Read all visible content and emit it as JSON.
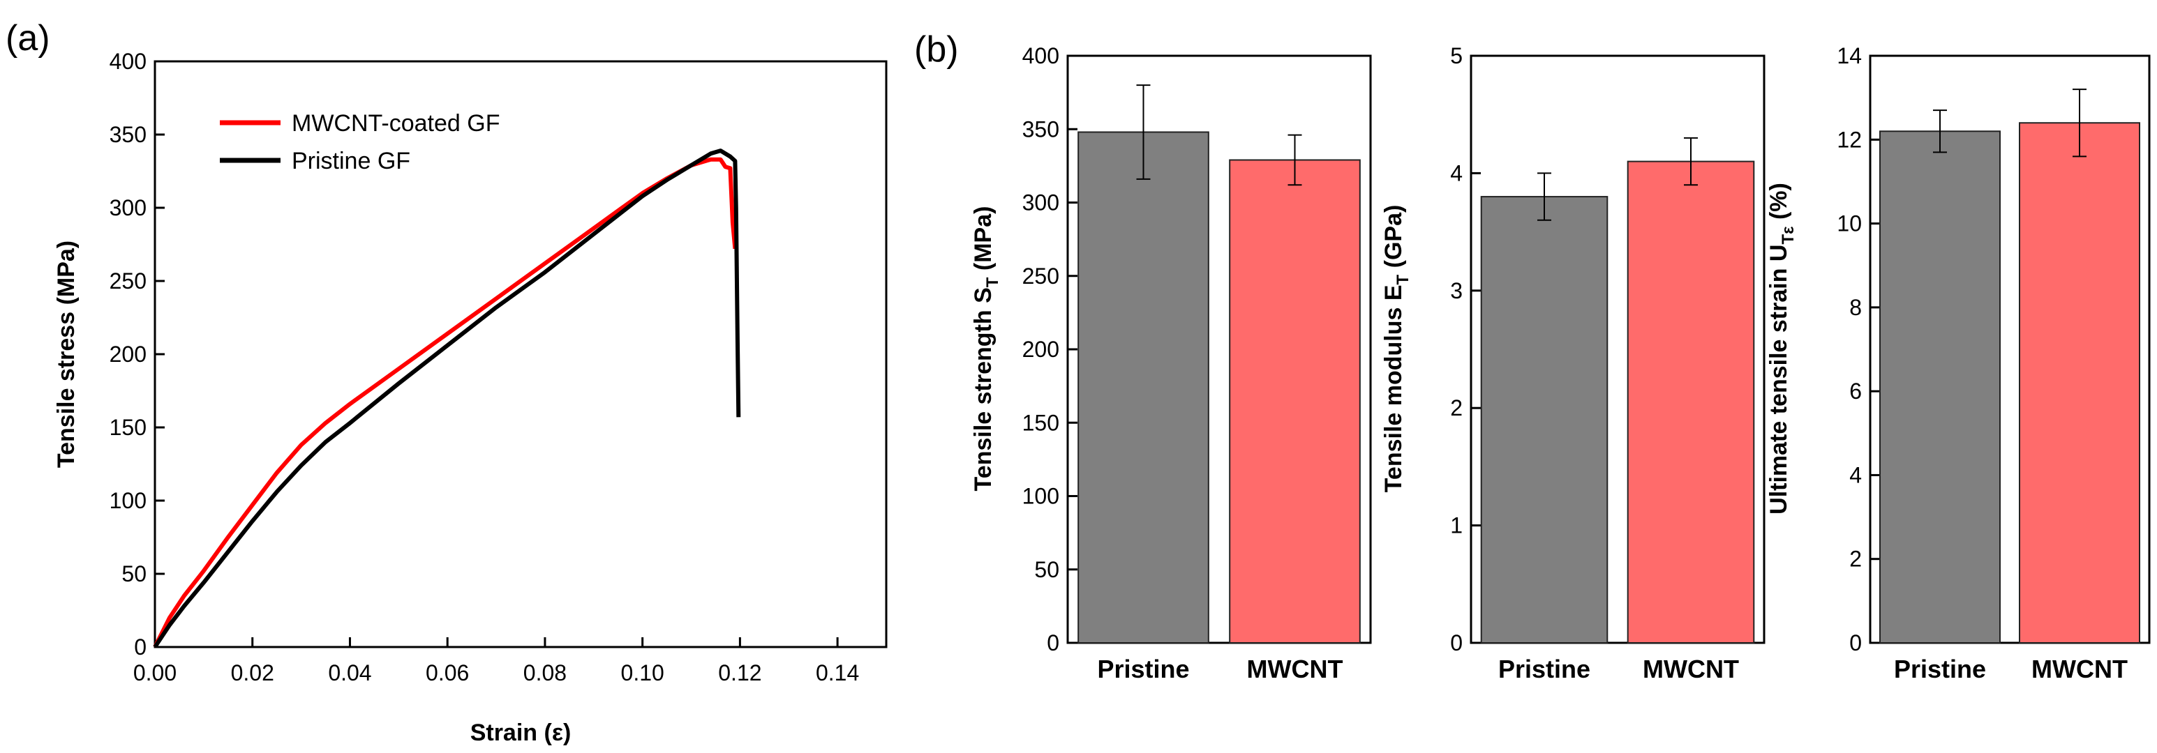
{
  "panel_labels": {
    "a": "(a)",
    "b": "(b)"
  },
  "chart_data": [
    {
      "type": "line",
      "panel": "(a)",
      "xlabel": "Strain (ε)",
      "ylabel": "Tensile stress (MPa)",
      "xlim": [
        0,
        0.15
      ],
      "ylim": [
        0,
        400
      ],
      "xticks": [
        "0.00",
        "0.02",
        "0.04",
        "0.06",
        "0.08",
        "0.10",
        "0.12",
        "0.14"
      ],
      "yticks": [
        "0",
        "50",
        "100",
        "150",
        "200",
        "250",
        "300",
        "350",
        "400"
      ],
      "legend_position": "top-left",
      "series": [
        {
          "name": "MWCNT-coated GF",
          "color": "#ff0000",
          "x": [
            0,
            0.003,
            0.006,
            0.01,
            0.015,
            0.02,
            0.025,
            0.03,
            0.035,
            0.04,
            0.05,
            0.06,
            0.07,
            0.08,
            0.09,
            0.1,
            0.105,
            0.11,
            0.114,
            0.116,
            0.117,
            0.118,
            0.1185,
            0.119
          ],
          "y": [
            0,
            20,
            35,
            52,
            75,
            97,
            119,
            138,
            153,
            166,
            190,
            214,
            238,
            262,
            286,
            310,
            320,
            329,
            333,
            333,
            328,
            327,
            290,
            272
          ]
        },
        {
          "name": "Pristine GF",
          "color": "#000000",
          "x": [
            0,
            0.003,
            0.006,
            0.01,
            0.015,
            0.02,
            0.025,
            0.03,
            0.035,
            0.04,
            0.05,
            0.06,
            0.07,
            0.08,
            0.09,
            0.1,
            0.105,
            0.11,
            0.114,
            0.116,
            0.118,
            0.119,
            0.1192,
            0.1195,
            0.1197
          ],
          "y": [
            0,
            15,
            28,
            44,
            65,
            86,
            106,
            124,
            140,
            153,
            180,
            206,
            232,
            256,
            282,
            308,
            319,
            329,
            337,
            339,
            335,
            332,
            300,
            210,
            157
          ]
        }
      ]
    },
    {
      "type": "bar",
      "panel": "(b)",
      "ylabel_main": "Tensile strength S",
      "ylabel_sub": "T",
      "ylabel_unit": " (MPa)",
      "categories": [
        "Pristine",
        "MWCNT"
      ],
      "values": [
        348,
        329
      ],
      "errors": [
        32,
        17
      ],
      "colors": [
        "#808080",
        "#ff6b6b"
      ],
      "ylim": [
        0,
        400
      ],
      "yticks": [
        "0",
        "50",
        "100",
        "150",
        "200",
        "250",
        "300",
        "350",
        "400"
      ]
    },
    {
      "type": "bar",
      "ylabel_main": "Tensile modulus E",
      "ylabel_sub": "T",
      "ylabel_unit": " (GPa)",
      "categories": [
        "Pristine",
        "MWCNT"
      ],
      "values": [
        3.8,
        4.1
      ],
      "errors": [
        0.2,
        0.2
      ],
      "colors": [
        "#808080",
        "#ff6b6b"
      ],
      "ylim": [
        0,
        5
      ],
      "yticks": [
        "0",
        "1",
        "2",
        "3",
        "4",
        "5"
      ]
    },
    {
      "type": "bar",
      "ylabel_main": "Ultimate tensile strain U",
      "ylabel_sub": "Tε",
      "ylabel_unit": " (%)",
      "categories": [
        "Pristine",
        "MWCNT"
      ],
      "values": [
        12.2,
        12.4
      ],
      "errors": [
        0.5,
        0.8
      ],
      "colors": [
        "#808080",
        "#ff6b6b"
      ],
      "ylim": [
        0,
        14
      ],
      "yticks": [
        "0",
        "2",
        "4",
        "6",
        "8",
        "10",
        "12",
        "14"
      ]
    }
  ]
}
